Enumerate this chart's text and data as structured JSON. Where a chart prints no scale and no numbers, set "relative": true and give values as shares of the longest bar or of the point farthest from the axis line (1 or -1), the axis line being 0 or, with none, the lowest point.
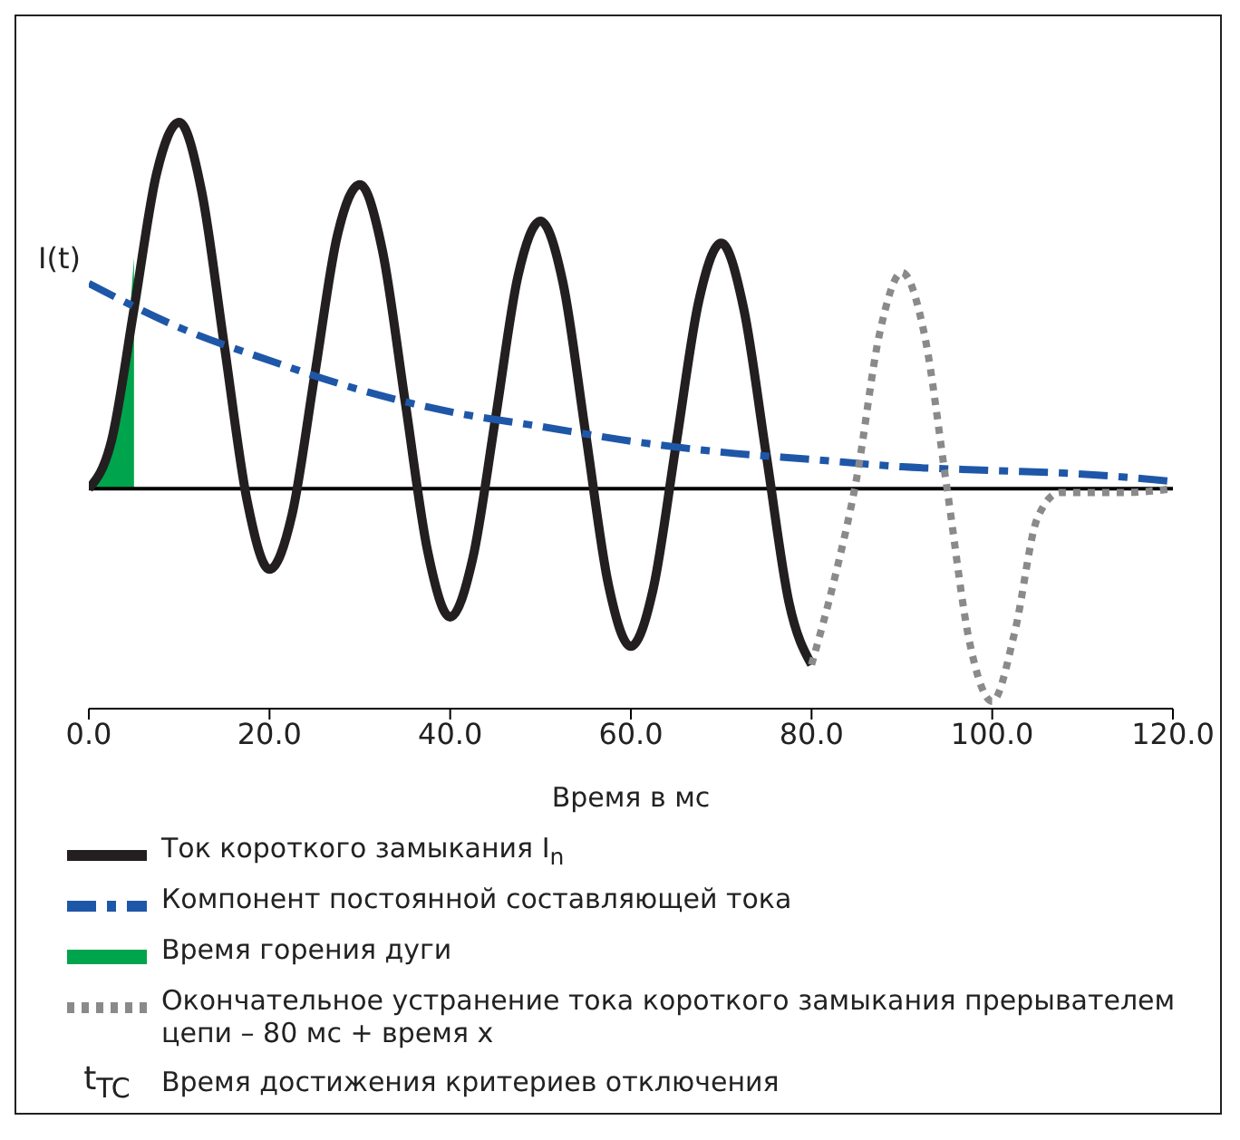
{
  "chart_data": {
    "type": "line",
    "relative": true,
    "ylabel": "I(t)",
    "xlabel": "Время в мс",
    "xlim": [
      0,
      120
    ],
    "xticks": [
      {
        "value": 0,
        "label": "0.0"
      },
      {
        "value": 20,
        "label": "20.0"
      },
      {
        "value": 40,
        "label": "40.0"
      },
      {
        "value": 60,
        "label": "60.0"
      },
      {
        "value": 80,
        "label": "80.0"
      },
      {
        "value": 100,
        "label": "100.0"
      },
      {
        "value": 120,
        "label": "120.0"
      }
    ],
    "legend": "bottom",
    "series": [
      {
        "name": "Ток короткого замыкания I$_{n}$",
        "line_style": "solid",
        "color": "#231f20",
        "x": [
          0,
          2.5,
          5,
          7.5,
          10,
          12.5,
          15,
          17.5,
          20,
          22.5,
          25,
          27.5,
          30,
          32.5,
          35,
          37.5,
          40,
          42.5,
          45,
          47.5,
          50,
          52.5,
          55,
          57.5,
          60,
          62.5,
          65,
          67.5,
          70,
          72.5,
          75,
          77.5,
          80
        ],
        "values": [
          0,
          0.13,
          0.49,
          0.86,
          1,
          0.81,
          0.39,
          -0.03,
          -0.22,
          -0.07,
          0.31,
          0.69,
          0.83,
          0.65,
          0.24,
          -0.17,
          -0.35,
          -0.19,
          0.19,
          0.58,
          0.73,
          0.56,
          0.15,
          -0.26,
          -0.43,
          -0.27,
          0.12,
          0.51,
          0.67,
          0.49,
          0.09,
          -0.31,
          -0.48
        ]
      },
      {
        "name": "Компонент постоянной составляющей тока",
        "line_style": "dashed",
        "color": "#1f57a8",
        "x": [
          0,
          10,
          20,
          30,
          40,
          50,
          60,
          70,
          80,
          90,
          100,
          110,
          120
        ],
        "values": [
          0.56,
          0.44,
          0.35,
          0.27,
          0.21,
          0.17,
          0.13,
          0.1,
          0.08,
          0.06,
          0.05,
          0.04,
          0.02
        ]
      },
      {
        "name": "Время горения дуги",
        "type": "area",
        "color": "#00a44c",
        "x": [
          0,
          1,
          2,
          3,
          4,
          5
        ],
        "values": [
          0,
          0.03,
          0.08,
          0.17,
          0.33,
          0.63
        ]
      },
      {
        "name": "Окончательное устранение тока короткого замыкания прерывателем цепи – 80 мс + время x",
        "line_style": "dotted",
        "color": "#8a8a8a",
        "x": [
          80,
          82.5,
          85,
          87.5,
          90,
          92.5,
          95,
          97.5,
          100,
          102.5,
          105,
          107.5,
          110,
          115,
          120
        ],
        "values": [
          -0.48,
          -0.25,
          0.03,
          0.42,
          0.59,
          0.42,
          0,
          -0.42,
          -0.58,
          -0.39,
          -0.08,
          -0.01,
          -0.01,
          -0.01,
          0
        ]
      }
    ],
    "annotations": [
      "t$_{TC}$",
      "Время достижения критериев отключения"
    ]
  }
}
